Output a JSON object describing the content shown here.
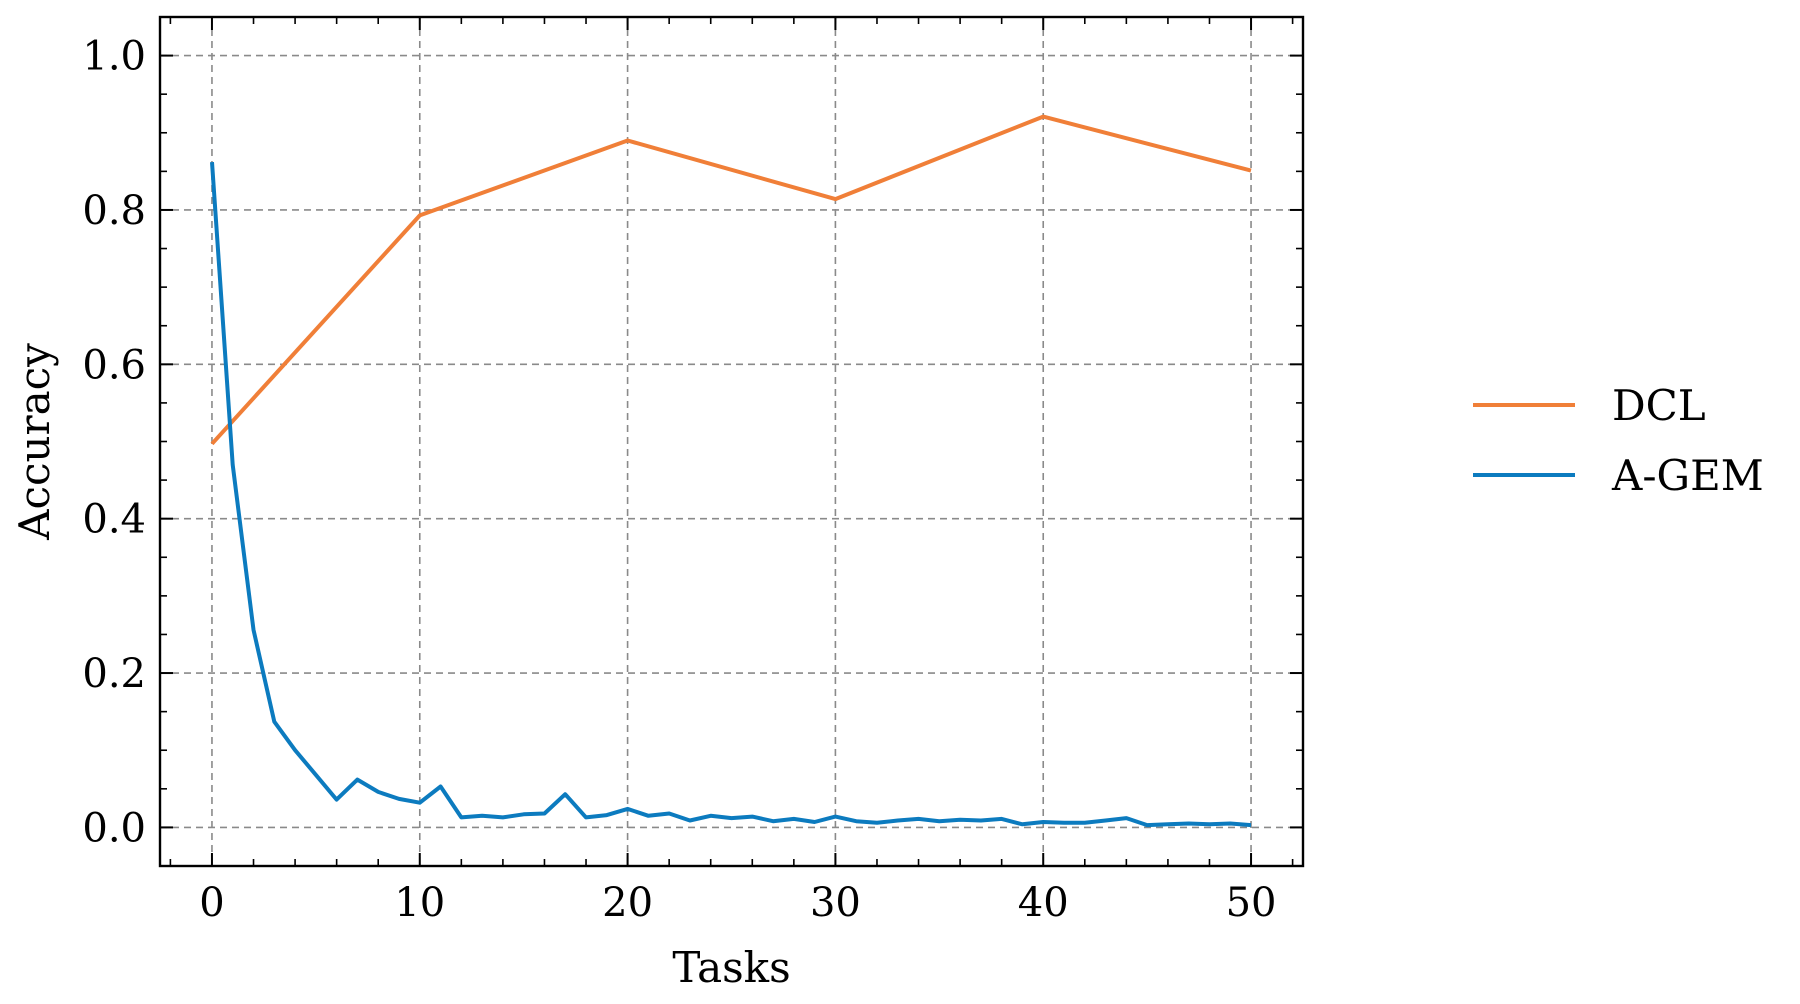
{
  "chart_data": {
    "type": "line",
    "title": "",
    "xlabel": "Tasks",
    "ylabel": "Accuracy",
    "xlim": [
      -2.5,
      52.5
    ],
    "ylim": [
      -0.05,
      1.05
    ],
    "xticks": [
      0,
      10,
      20,
      30,
      40,
      50
    ],
    "xtick_labels": [
      "0",
      "10",
      "20",
      "30",
      "40",
      "50"
    ],
    "yticks": [
      0.0,
      0.2,
      0.4,
      0.6,
      0.8,
      1.0
    ],
    "ytick_labels": [
      "0.0",
      "0.2",
      "0.4",
      "0.6",
      "0.8",
      "1.0"
    ],
    "grid": true,
    "grid_style": "dashed",
    "legend_position": "outside-right",
    "series": [
      {
        "name": "DCL",
        "color": "#F07F38",
        "x": [
          0,
          10,
          20,
          30,
          40,
          50
        ],
        "y": [
          0.497,
          0.793,
          0.89,
          0.814,
          0.921,
          0.851
        ]
      },
      {
        "name": "A-GEM",
        "color": "#0C7BBF",
        "x": [
          0,
          1,
          2,
          3,
          4,
          5,
          6,
          7,
          8,
          9,
          10,
          11,
          12,
          13,
          14,
          15,
          16,
          17,
          18,
          19,
          20,
          21,
          22,
          23,
          24,
          25,
          26,
          27,
          28,
          29,
          30,
          31,
          32,
          33,
          34,
          35,
          36,
          37,
          38,
          39,
          40,
          41,
          42,
          43,
          44,
          45,
          46,
          47,
          48,
          49,
          50
        ],
        "y": [
          0.862,
          0.47,
          0.256,
          0.137,
          0.1,
          0.068,
          0.036,
          0.062,
          0.046,
          0.037,
          0.032,
          0.053,
          0.013,
          0.015,
          0.013,
          0.017,
          0.018,
          0.043,
          0.013,
          0.016,
          0.024,
          0.015,
          0.018,
          0.009,
          0.015,
          0.012,
          0.014,
          0.008,
          0.011,
          0.007,
          0.014,
          0.008,
          0.006,
          0.009,
          0.011,
          0.008,
          0.01,
          0.009,
          0.011,
          0.004,
          0.007,
          0.006,
          0.006,
          0.009,
          0.012,
          0.003,
          0.004,
          0.005,
          0.004,
          0.005,
          0.003
        ]
      }
    ]
  }
}
